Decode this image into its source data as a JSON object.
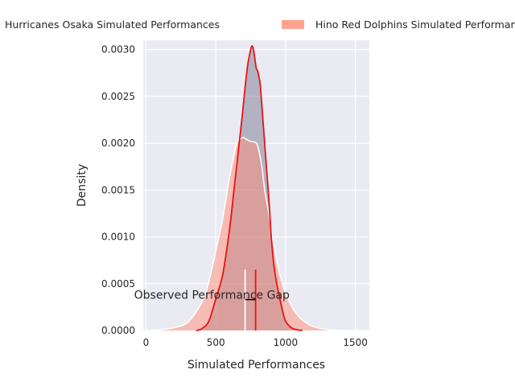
{
  "chart_data": {
    "type": "area",
    "title": "",
    "xlabel": "Simulated Performances",
    "ylabel": "Density",
    "xlim": [
      -20,
      1600
    ],
    "ylim": [
      0,
      0.0031
    ],
    "grid": true,
    "legend_position": "top",
    "x_ticks": [
      0,
      500,
      1000,
      1500
    ],
    "y_ticks": [
      0,
      0.0005,
      0.001,
      0.0015,
      0.002,
      0.0025,
      0.003
    ],
    "series": [
      {
        "name": "Hurricanes Osaka Simulated Performances",
        "fill_color": "#4a4a6a",
        "line_color": "#e81414",
        "x": [
          360,
          400,
          450,
          500,
          550,
          600,
          630,
          660,
          690,
          710,
          730,
          750,
          760,
          770,
          780,
          790,
          800,
          810,
          820,
          840,
          860,
          880,
          900,
          920,
          950,
          980,
          1000,
          1040,
          1080,
          1120
        ],
        "y": [
          0.0,
          2e-05,
          0.0001,
          0.00034,
          0.0006,
          0.0011,
          0.0015,
          0.0019,
          0.0023,
          0.0026,
          0.00285,
          0.003,
          0.00304,
          0.003,
          0.0029,
          0.0028,
          0.00277,
          0.0027,
          0.0026,
          0.0022,
          0.0018,
          0.0014,
          0.00095,
          0.00065,
          0.0004,
          0.0002,
          0.0001,
          3e-05,
          1e-05,
          0.0
        ]
      },
      {
        "name": "Hino Red Dolphins Simulated Performances",
        "fill_color": "#ff8c75",
        "line_color": "#ffffff",
        "x": [
          0,
          100,
          200,
          300,
          400,
          450,
          500,
          550,
          600,
          650,
          680,
          700,
          720,
          750,
          780,
          800,
          830,
          850,
          880,
          900,
          950,
          1000,
          1050,
          1100,
          1150,
          1200,
          1300,
          1400,
          1500
        ],
        "y": [
          0.0,
          1e-05,
          3e-05,
          9e-05,
          0.0003,
          0.00052,
          0.00085,
          0.0012,
          0.00165,
          0.002,
          0.00205,
          0.00206,
          0.00204,
          0.00202,
          0.00201,
          0.00197,
          0.00175,
          0.0015,
          0.00125,
          0.00105,
          0.00065,
          0.0004,
          0.00024,
          0.00014,
          8e-05,
          4e-05,
          1e-05,
          0.0,
          0.0
        ]
      }
    ],
    "observed_lines": [
      {
        "x": 710,
        "y": 0.00065,
        "color": "#ffffff"
      },
      {
        "x": 785,
        "y": 0.00065,
        "color": "#e81414"
      }
    ],
    "gap_range": {
      "from": 710,
      "to": 785,
      "y": 0.00033
    },
    "annotation": "Observed Performance Gap",
    "annotation_pos": {
      "x": 760,
      "y": 0.00038
    }
  }
}
